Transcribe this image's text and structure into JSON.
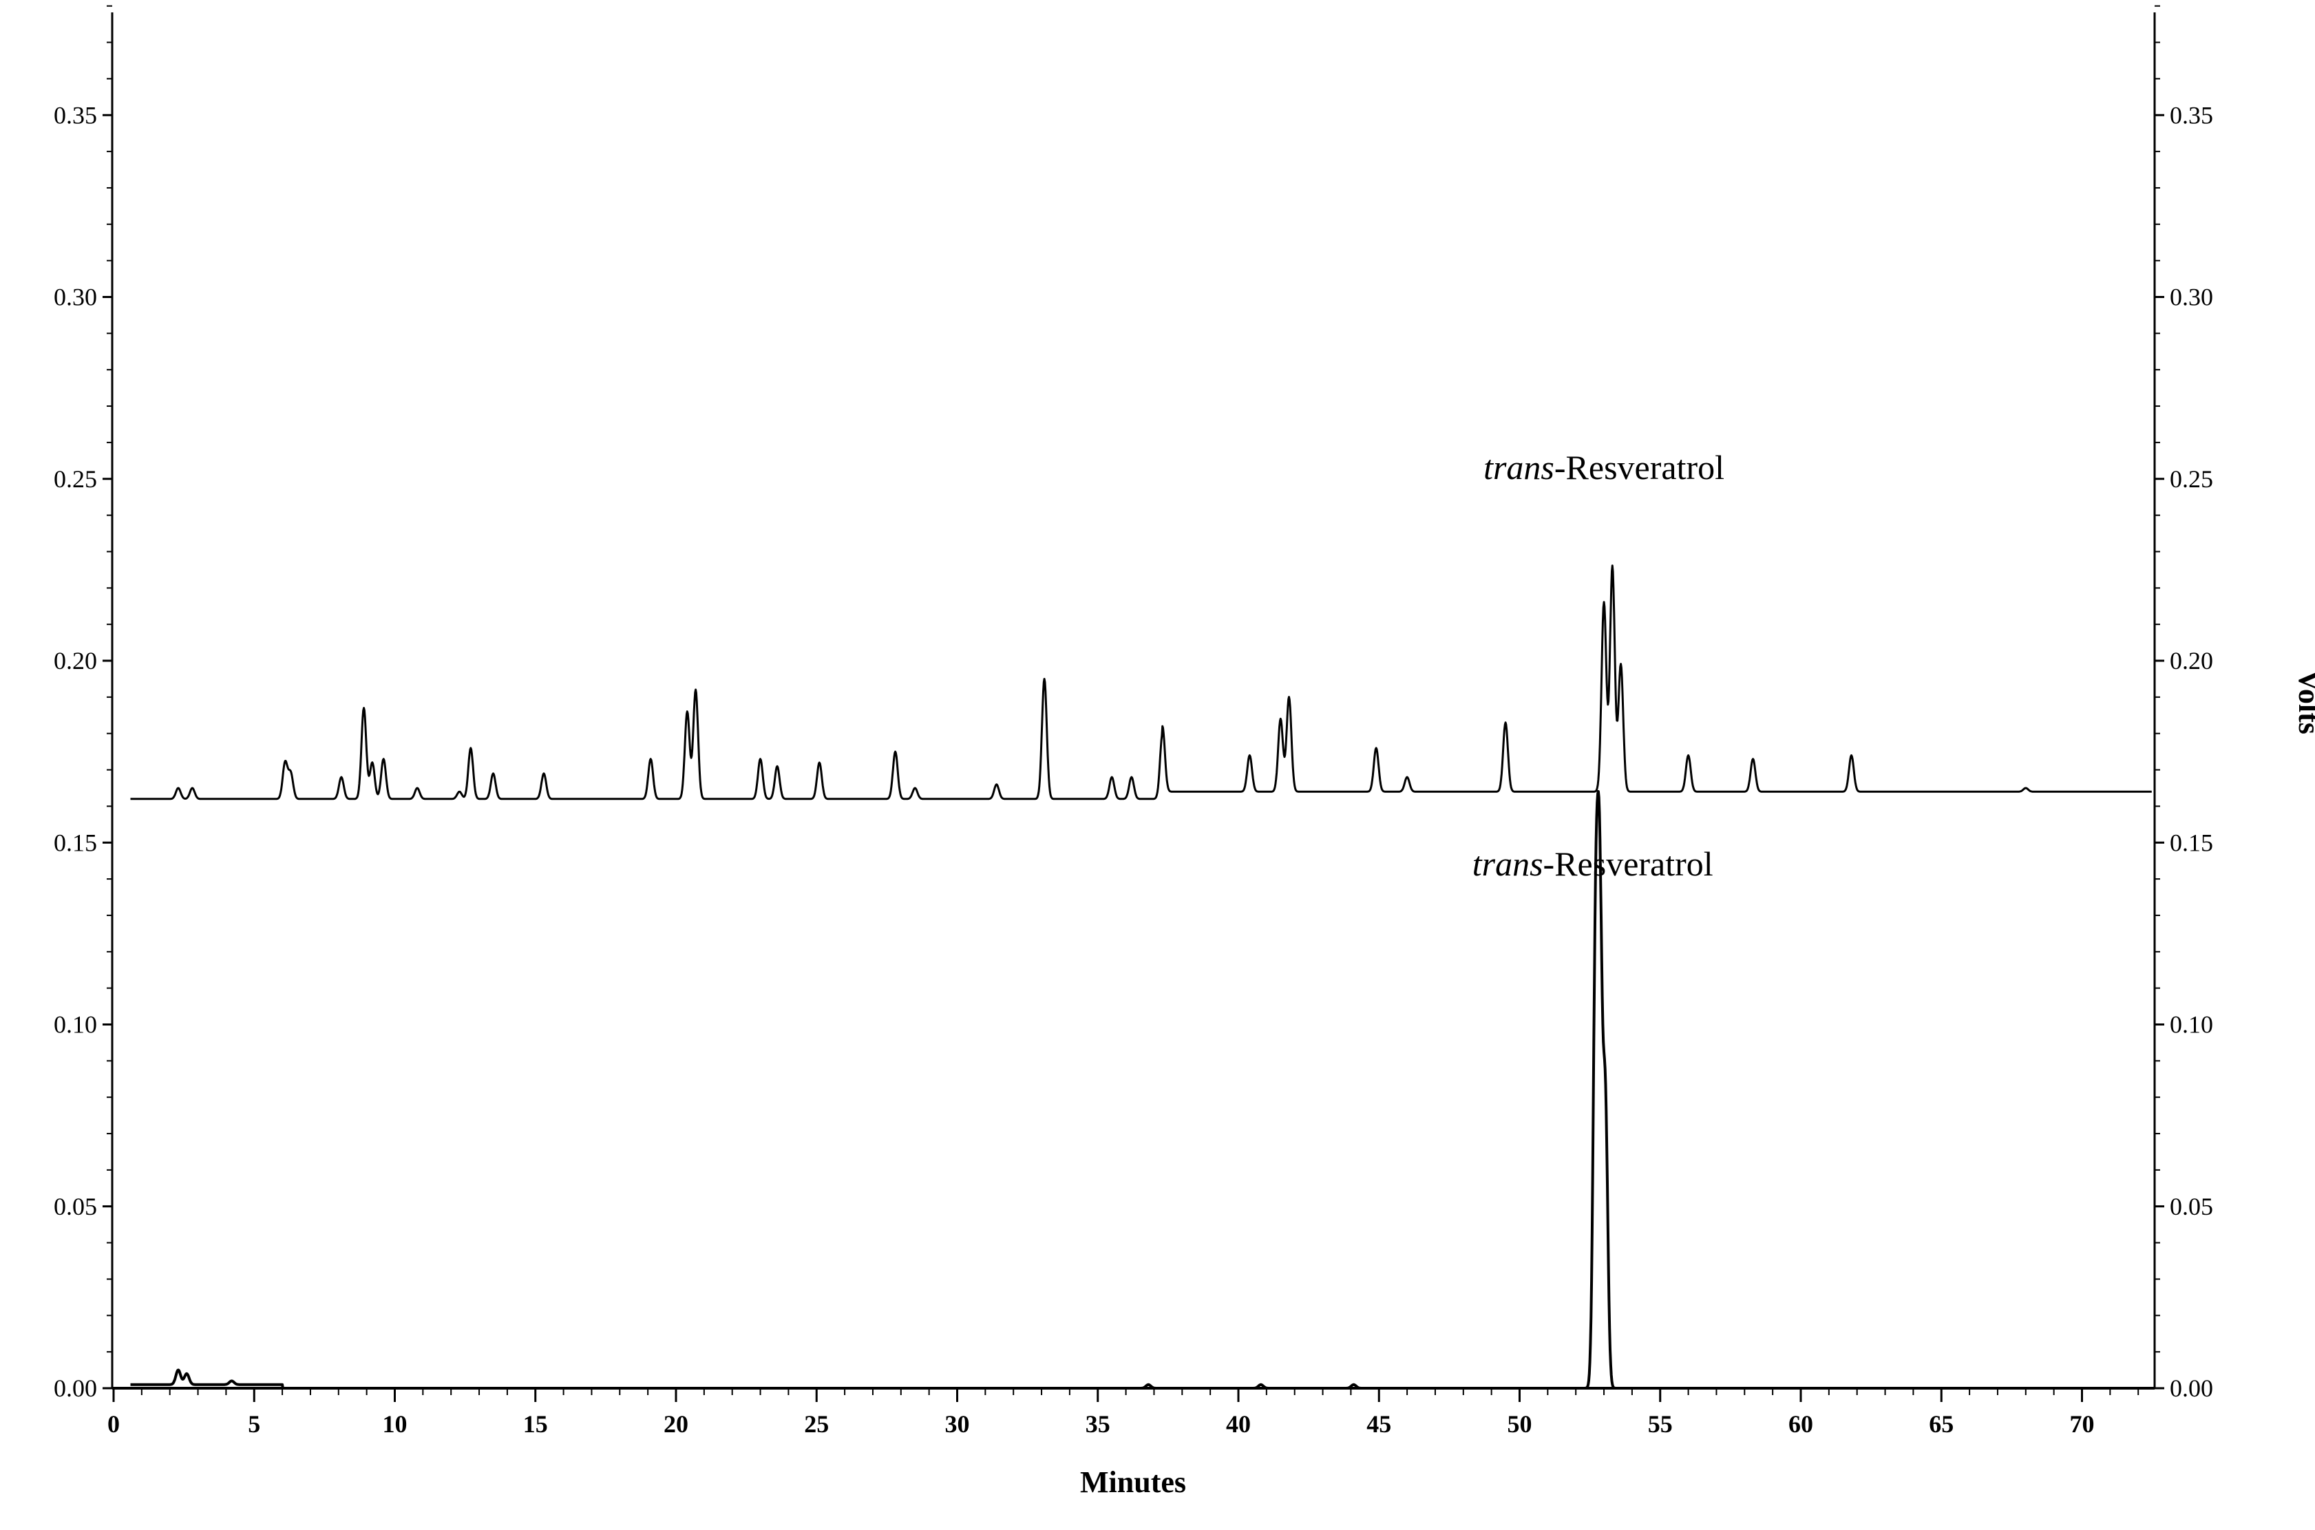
{
  "chart_data": {
    "type": "line",
    "xlabel": "Minutes",
    "ylabel": "Volts",
    "xlim": [
      0,
      72.5
    ],
    "ylim": [
      0,
      0.38
    ],
    "x_ticks": [
      0,
      5,
      10,
      15,
      20,
      25,
      30,
      35,
      40,
      45,
      50,
      55,
      60,
      65,
      70
    ],
    "x_tick_labels": [
      "0",
      "5",
      "10",
      "15",
      "20",
      "25",
      "30",
      "35",
      "40",
      "45",
      "50",
      "55",
      "60",
      "65",
      "70"
    ],
    "y_ticks": [
      0,
      0.05,
      0.1,
      0.15,
      0.2,
      0.25,
      0.3,
      0.35
    ],
    "y_tick_labels_left": [
      "0.00",
      "0.05",
      "0.10",
      "0.15",
      "0.20",
      "0.25",
      "0.30",
      "0.35"
    ],
    "y_tick_labels_right": [
      "0.00",
      "0.05",
      "0.10",
      "0.15",
      "0.20",
      "0.25",
      "0.30",
      "0.35"
    ],
    "grid": false,
    "annotations": [
      {
        "text_italic": "trans",
        "text": "-Resveratrol",
        "x": 53.0,
        "y": 0.25
      },
      {
        "text_italic": "trans",
        "text": "-Resveratrol",
        "x": 52.6,
        "y": 0.141
      }
    ],
    "series": [
      {
        "baseline": 0.162,
        "baseline_after": 0.164,
        "baseline_step_x": 37.3,
        "peaks": [
          {
            "x": 2.3,
            "h": 0.003
          },
          {
            "x": 2.8,
            "h": 0.003
          },
          {
            "x": 6.1,
            "h": 0.01
          },
          {
            "x": 6.3,
            "h": 0.007
          },
          {
            "x": 8.1,
            "h": 0.006
          },
          {
            "x": 8.9,
            "h": 0.025
          },
          {
            "x": 9.2,
            "h": 0.01
          },
          {
            "x": 9.6,
            "h": 0.011
          },
          {
            "x": 10.8,
            "h": 0.003
          },
          {
            "x": 12.3,
            "h": 0.002
          },
          {
            "x": 12.7,
            "h": 0.014
          },
          {
            "x": 13.5,
            "h": 0.007
          },
          {
            "x": 15.3,
            "h": 0.007
          },
          {
            "x": 19.1,
            "h": 0.011
          },
          {
            "x": 20.4,
            "h": 0.024
          },
          {
            "x": 20.7,
            "h": 0.03
          },
          {
            "x": 23.0,
            "h": 0.011
          },
          {
            "x": 23.6,
            "h": 0.009
          },
          {
            "x": 25.1,
            "h": 0.01
          },
          {
            "x": 27.8,
            "h": 0.013
          },
          {
            "x": 28.5,
            "h": 0.003
          },
          {
            "x": 31.4,
            "h": 0.004
          },
          {
            "x": 33.1,
            "h": 0.033
          },
          {
            "x": 35.5,
            "h": 0.006
          },
          {
            "x": 36.2,
            "h": 0.006
          },
          {
            "x": 37.3,
            "h": 0.018
          },
          {
            "x": 40.4,
            "h": 0.01
          },
          {
            "x": 41.5,
            "h": 0.02
          },
          {
            "x": 41.8,
            "h": 0.026
          },
          {
            "x": 44.9,
            "h": 0.012
          },
          {
            "x": 46.0,
            "h": 0.004
          },
          {
            "x": 49.5,
            "h": 0.019
          },
          {
            "x": 53.0,
            "h": 0.052
          },
          {
            "x": 53.3,
            "h": 0.062
          },
          {
            "x": 53.6,
            "h": 0.035
          },
          {
            "x": 56.0,
            "h": 0.01
          },
          {
            "x": 58.3,
            "h": 0.009
          },
          {
            "x": 61.8,
            "h": 0.01
          },
          {
            "x": 68.0,
            "h": 0.001
          }
        ]
      },
      {
        "baseline": 0.001,
        "baseline_after": 0.0,
        "baseline_step_x": 6.0,
        "peaks": [
          {
            "x": 2.3,
            "h": 0.004
          },
          {
            "x": 2.6,
            "h": 0.003
          },
          {
            "x": 4.2,
            "h": 0.001
          },
          {
            "x": 36.8,
            "h": 0.001
          },
          {
            "x": 40.8,
            "h": 0.001
          },
          {
            "x": 44.1,
            "h": 0.001
          },
          {
            "x": 52.7,
            "h": 0.114
          },
          {
            "x": 52.85,
            "h": 0.126
          },
          {
            "x": 53.05,
            "h": 0.078
          }
        ]
      }
    ]
  }
}
